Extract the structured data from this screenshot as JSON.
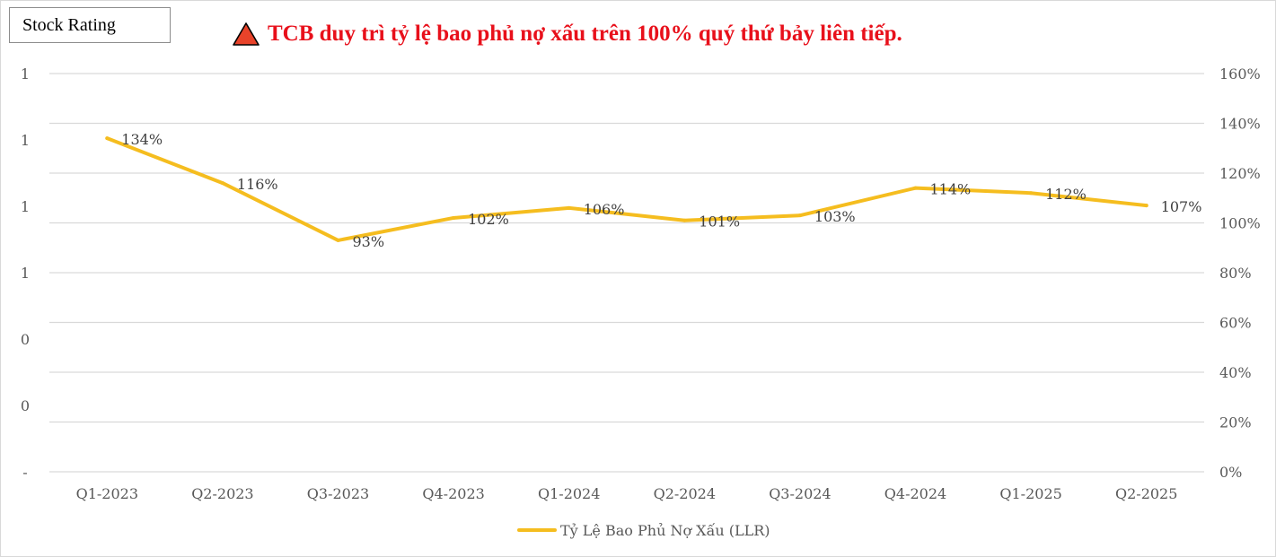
{
  "header": {
    "stock_label": "Stock Rating",
    "title": "TCB duy trì tỷ lệ bao phủ nợ xấu trên 100% quý thứ bảy liên tiếp.",
    "title_color": "#e8101b",
    "warning_icon": "warning-triangle-icon",
    "warning_icon_color": "#e8432a"
  },
  "chart_data": {
    "type": "line",
    "categories": [
      "Q1-2023",
      "Q2-2023",
      "Q3-2023",
      "Q4-2023",
      "Q1-2024",
      "Q2-2024",
      "Q3-2024",
      "Q4-2024",
      "Q1-2025",
      "Q2-2025"
    ],
    "series": [
      {
        "name": "Tỷ Lệ Bao Phủ Nợ Xấu (LLR)",
        "axis": "right",
        "color": "#f5bd1f",
        "values": [
          134,
          116,
          93,
          102,
          106,
          101,
          103,
          114,
          112,
          107
        ],
        "labels": [
          "134%",
          "116%",
          "93%",
          "102%",
          "106%",
          "101%",
          "103%",
          "114%",
          "112%",
          "107%"
        ]
      }
    ],
    "right_axis": {
      "ylim": [
        0,
        160
      ],
      "tick_values": [
        0,
        20,
        40,
        60,
        80,
        100,
        120,
        140,
        160
      ],
      "tick_labels": [
        "0%",
        "20%",
        "40%",
        "60%",
        "80%",
        "100%",
        "120%",
        "140%",
        "160%"
      ]
    },
    "left_axis": {
      "tick_labels": [
        "-",
        "0",
        "0",
        "1",
        "1",
        "1",
        "1"
      ]
    },
    "grid": true,
    "legend_position": "bottom"
  }
}
